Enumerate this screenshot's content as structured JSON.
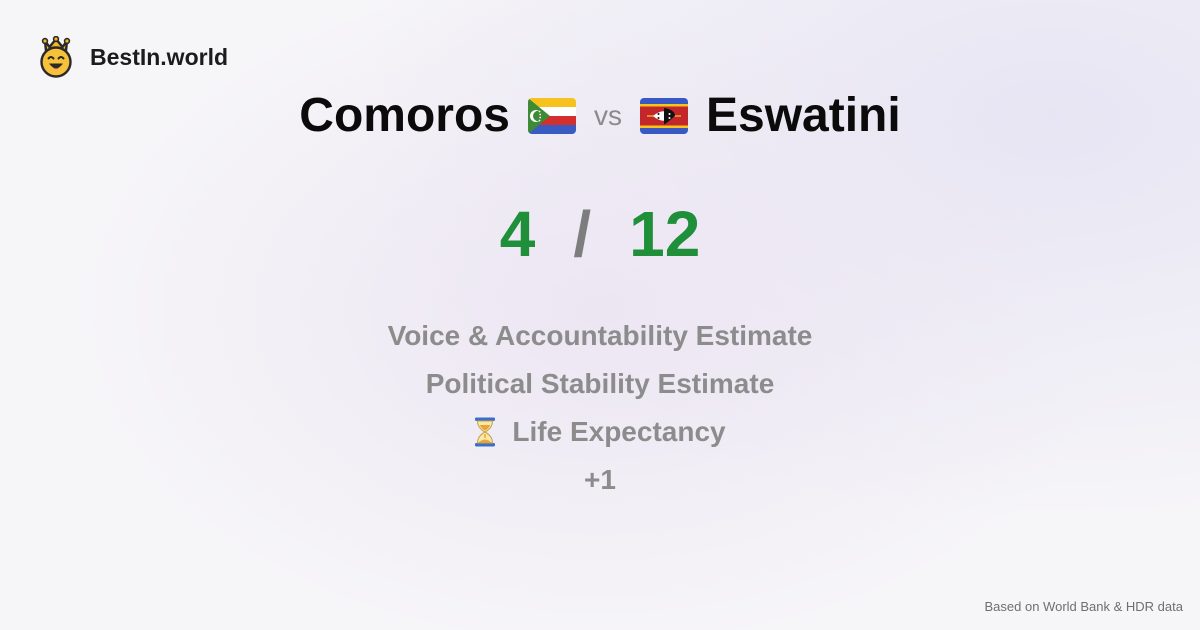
{
  "brand": {
    "name": "BestIn.world",
    "icon": "crown-smile-icon"
  },
  "comparison": {
    "left_country": "Comoros",
    "vs": "vs",
    "right_country": "Eswatini",
    "left_flag": "comoros-flag-icon",
    "right_flag": "eswatini-flag-icon"
  },
  "score": {
    "left": "4",
    "separator": "/",
    "right": "12",
    "color": "#1f8f3a"
  },
  "metrics": [
    {
      "label": "Voice & Accountability Estimate",
      "icon": null
    },
    {
      "label": "Political Stability Estimate",
      "icon": null
    },
    {
      "label": "Life Expectancy",
      "icon": "hourglass-icon"
    },
    {
      "label": "+1",
      "icon": null
    }
  ],
  "footer": {
    "source": "Based on World Bank & HDR data"
  }
}
